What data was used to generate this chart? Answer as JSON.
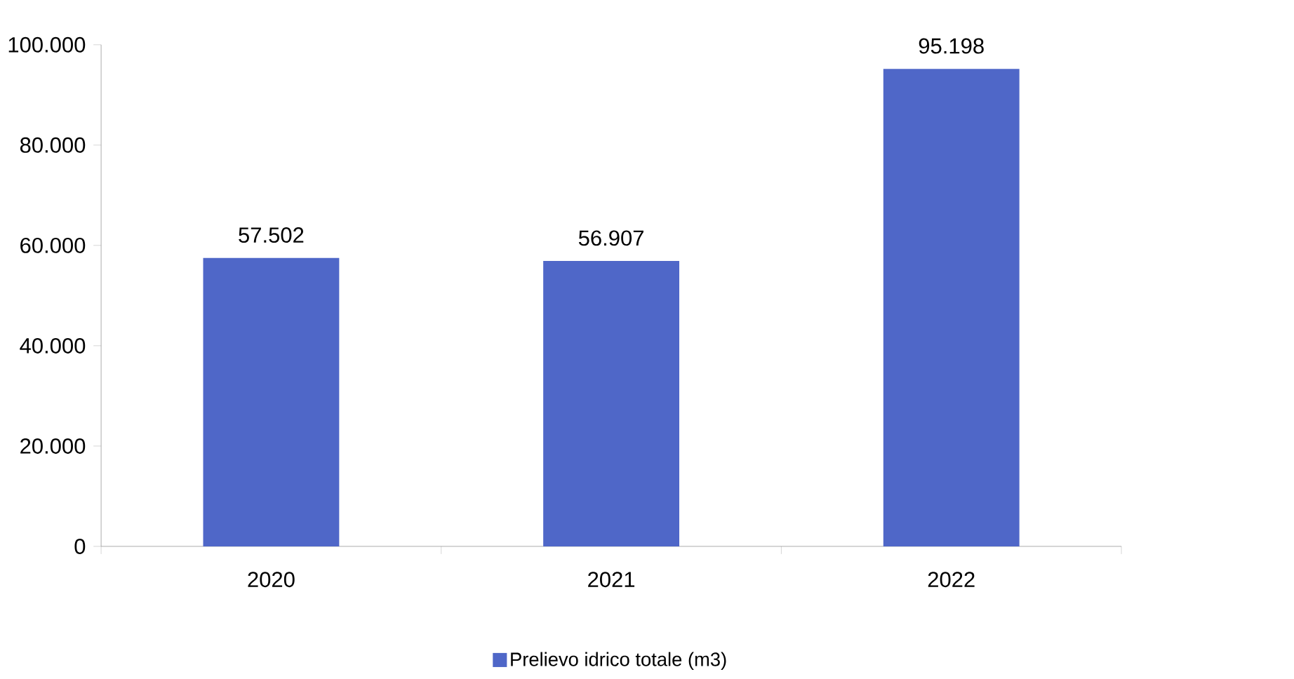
{
  "chart_data": {
    "type": "bar",
    "categories": [
      "2020",
      "2021",
      "2022"
    ],
    "series": [
      {
        "name": "Prelievo idrico totale (m3)",
        "color": "#4f67c8",
        "values": [
          57502,
          56907,
          95198
        ],
        "value_labels": [
          "57.502",
          "56.907",
          "95.198"
        ]
      }
    ],
    "ylim": [
      0,
      100000
    ],
    "yticks": [
      {
        "value": 0,
        "label": "0"
      },
      {
        "value": 20000,
        "label": "20.000"
      },
      {
        "value": 40000,
        "label": "40.000"
      },
      {
        "value": 60000,
        "label": "60.000"
      },
      {
        "value": 80000,
        "label": "80.000"
      },
      {
        "value": 100000,
        "label": "100.000"
      }
    ],
    "grid": false,
    "legend": "bottom"
  }
}
